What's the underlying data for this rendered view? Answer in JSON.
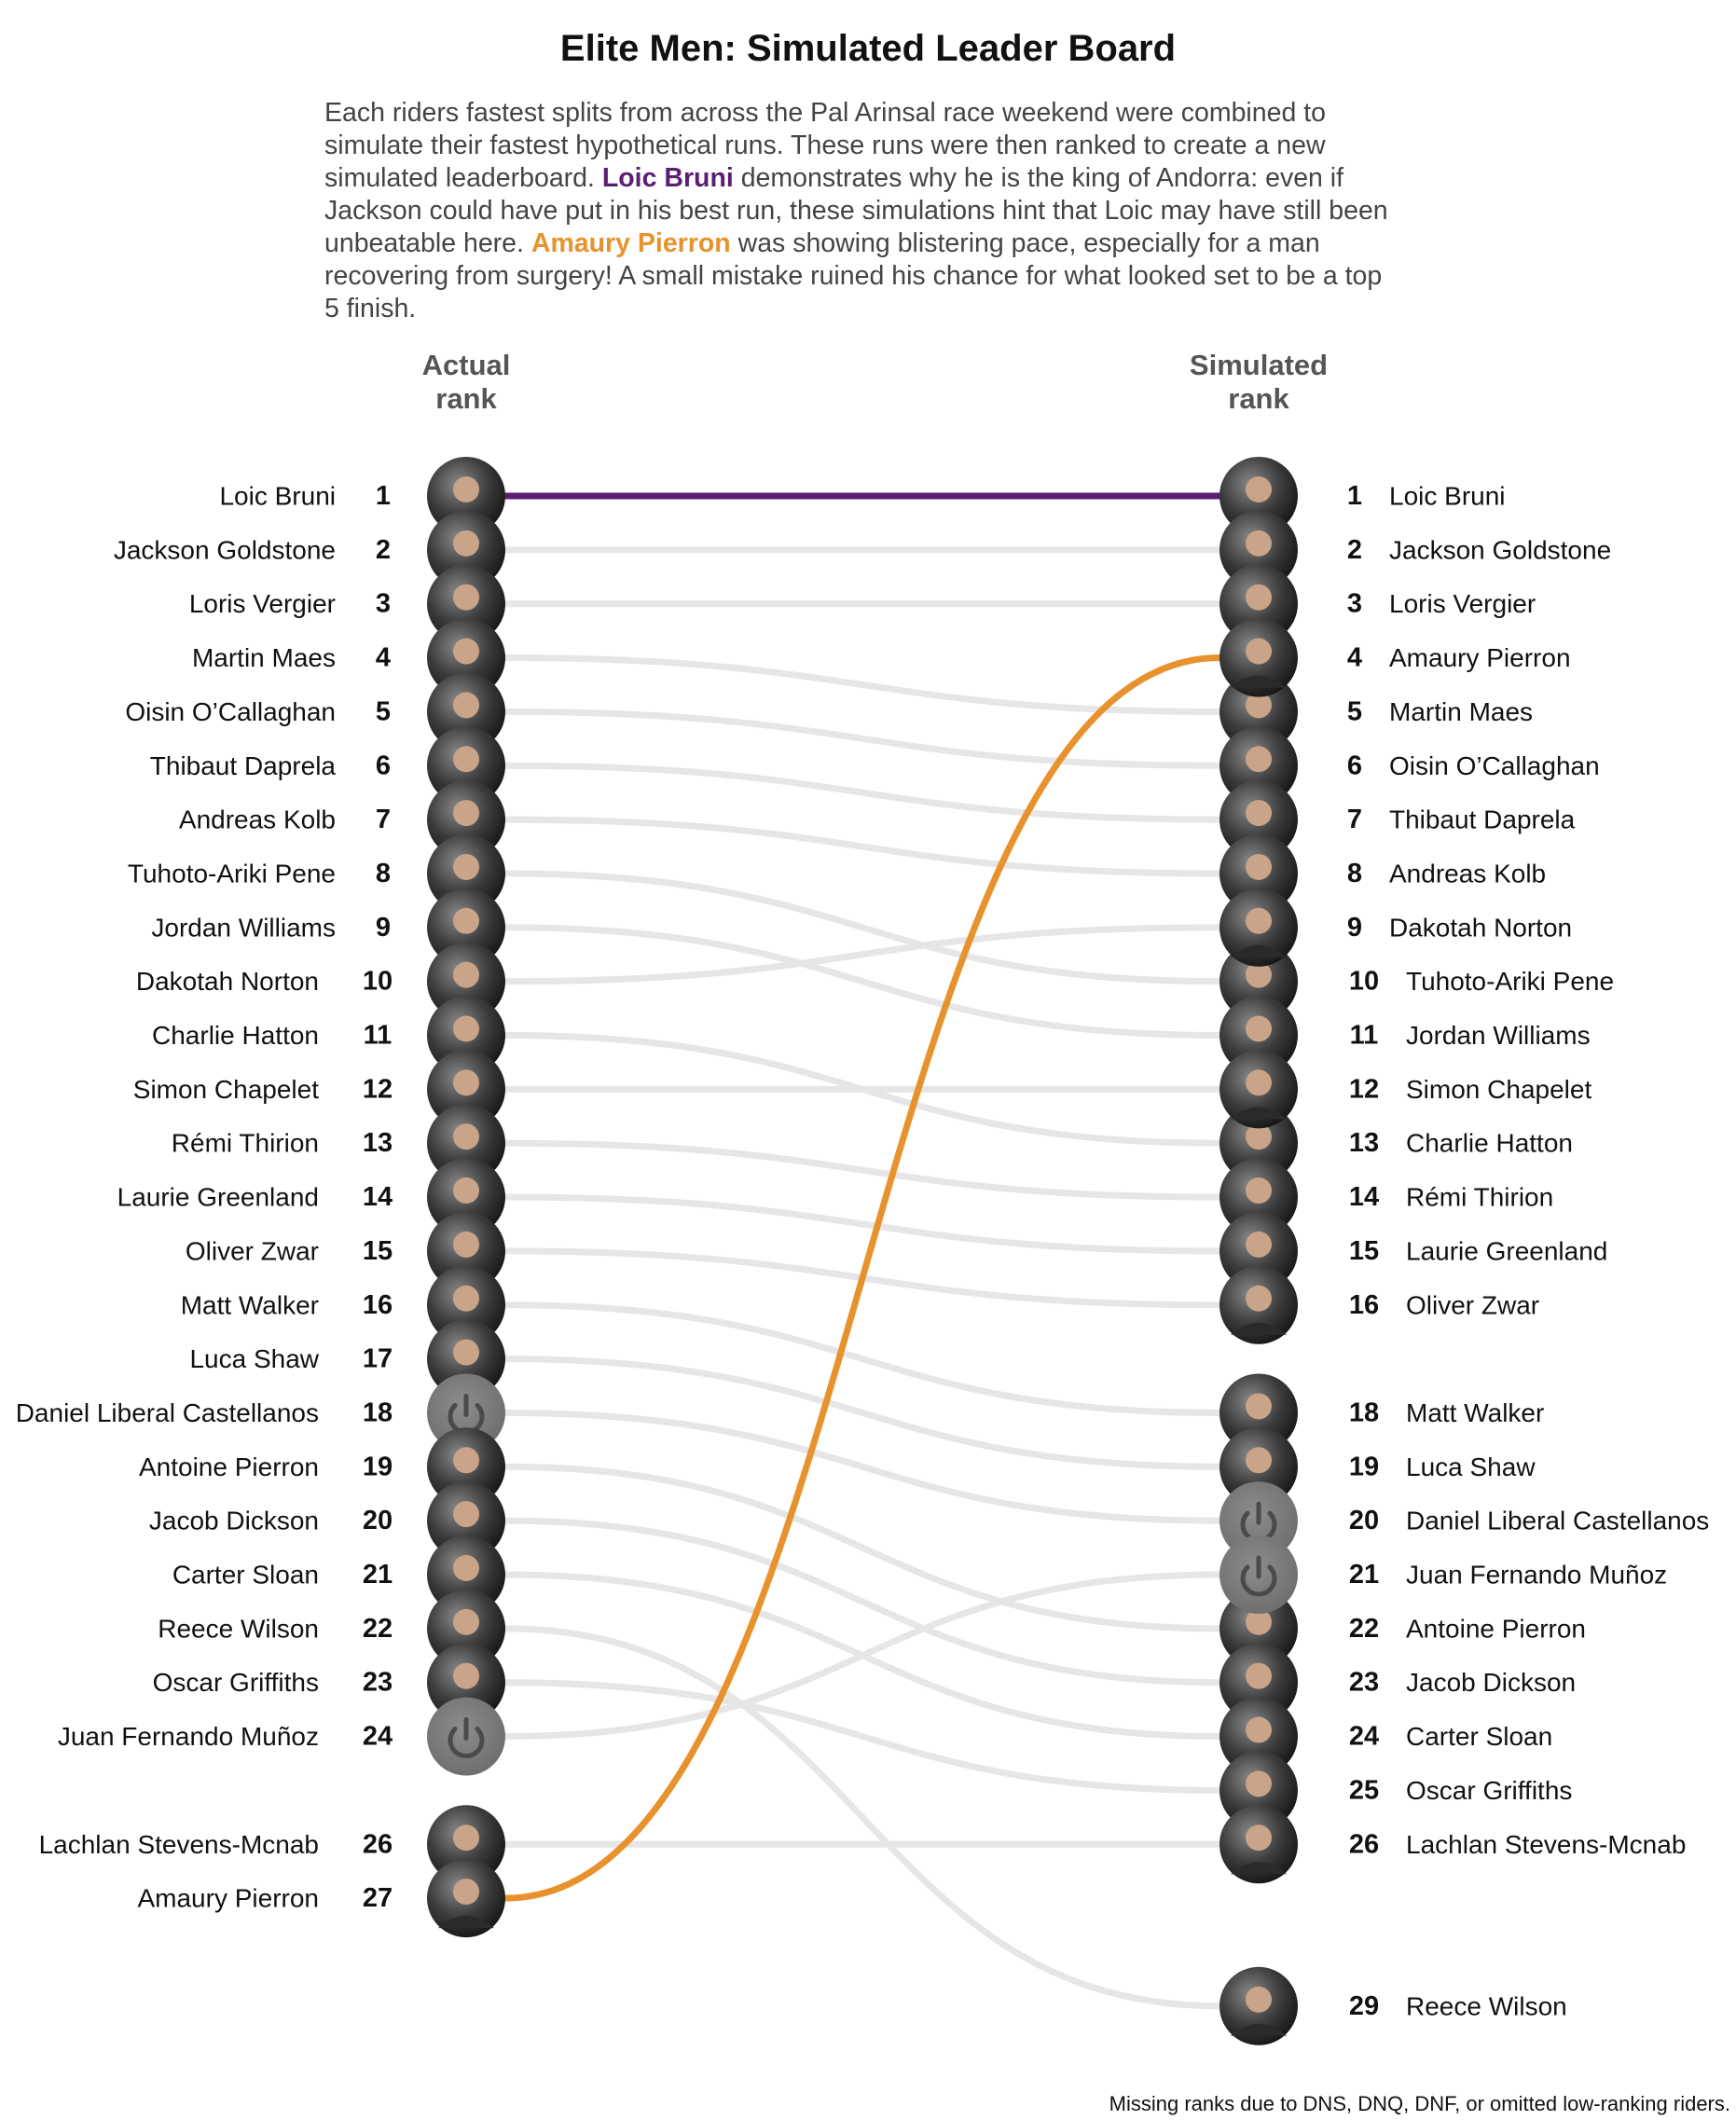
{
  "title": "Elite Men: Simulated Leader Board",
  "subtitle": {
    "p1": "Each riders fastest splits from across the Pal Arinsal race weekend were combined to simulate their fastest hypothetical runs. These runs were then ranked to create a new simulated leaderboard. ",
    "h1": "Loic Bruni",
    "p2": " demonstrates why he is the king of Andorra: even if Jackson could have put in his best run, these simulations hint that Loic may have still been unbeatable here. ",
    "h2": "Amaury Pierron",
    "p3": " was showing blistering pace, especially for a man recovering from surgery! A small mistake ruined his chance for what looked set to be a top 5 finish."
  },
  "columns": {
    "left": "Actual\nrank",
    "right": "Simulated\nrank"
  },
  "footnote": "Missing ranks due to DNS, DNQ, DNF, or omitted low-ranking riders.",
  "colors": {
    "loic": "#5b1e74",
    "amaury": "#e8922e",
    "line": "#e6e6e6"
  },
  "chart_data": {
    "type": "slope",
    "x_labels": [
      "Actual rank",
      "Simulated rank"
    ],
    "riders": [
      {
        "name": "Loic Bruni",
        "actual": 1,
        "simulated": 1,
        "highlight": "loic"
      },
      {
        "name": "Jackson Goldstone",
        "actual": 2,
        "simulated": 2
      },
      {
        "name": "Loris Vergier",
        "actual": 3,
        "simulated": 3
      },
      {
        "name": "Martin Maes",
        "actual": 4,
        "simulated": 5
      },
      {
        "name": "Oisin O’Callaghan",
        "actual": 5,
        "simulated": 6
      },
      {
        "name": "Thibaut Daprela",
        "actual": 6,
        "simulated": 7
      },
      {
        "name": "Andreas Kolb",
        "actual": 7,
        "simulated": 8
      },
      {
        "name": "Tuhoto-Ariki Pene",
        "actual": 8,
        "simulated": 10
      },
      {
        "name": "Jordan Williams",
        "actual": 9,
        "simulated": 11
      },
      {
        "name": "Dakotah Norton",
        "actual": 10,
        "simulated": 9
      },
      {
        "name": "Charlie Hatton",
        "actual": 11,
        "simulated": 13
      },
      {
        "name": "Simon Chapelet",
        "actual": 12,
        "simulated": 12
      },
      {
        "name": "Rémi Thirion",
        "actual": 13,
        "simulated": 14
      },
      {
        "name": "Laurie Greenland",
        "actual": 14,
        "simulated": 15
      },
      {
        "name": "Oliver Zwar",
        "actual": 15,
        "simulated": 16
      },
      {
        "name": "Matt Walker",
        "actual": 16,
        "simulated": 18
      },
      {
        "name": "Luca Shaw",
        "actual": 17,
        "simulated": 19
      },
      {
        "name": "Daniel Liberal Castellanos",
        "actual": 18,
        "simulated": 20
      },
      {
        "name": "Antoine Pierron",
        "actual": 19,
        "simulated": 22
      },
      {
        "name": "Jacob Dickson",
        "actual": 20,
        "simulated": 23
      },
      {
        "name": "Carter Sloan",
        "actual": 21,
        "simulated": 24
      },
      {
        "name": "Reece Wilson",
        "actual": 22,
        "simulated": 29
      },
      {
        "name": "Oscar Griffiths",
        "actual": 23,
        "simulated": 25
      },
      {
        "name": "Juan Fernando Muñoz",
        "actual": 24,
        "simulated": 21
      },
      {
        "name": "Lachlan Stevens-Mcnab",
        "actual": 26,
        "simulated": 26
      },
      {
        "name": "Amaury Pierron",
        "actual": 27,
        "simulated": 4,
        "highlight": "amaury"
      }
    ]
  }
}
